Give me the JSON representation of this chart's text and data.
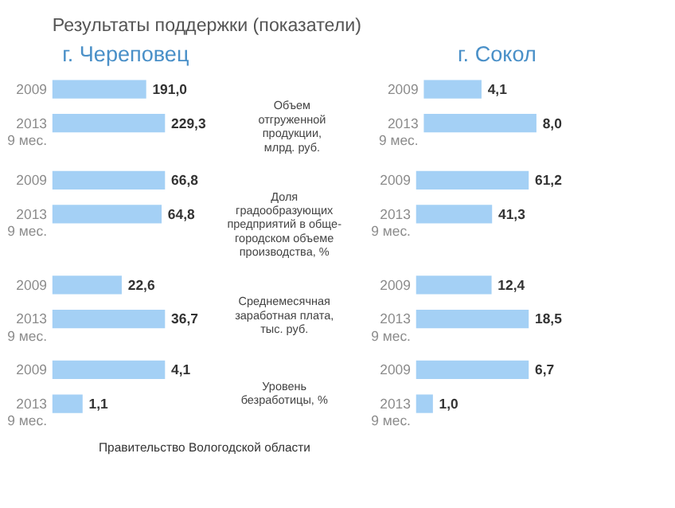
{
  "chart_data": [
    {
      "type": "other",
      "title": "Результаты поддержки (показатели)",
      "annotations": [
        "Правительство Вологодской области"
      ]
    },
    {
      "type": "bar",
      "orientation": "horizontal",
      "title": "г. Череповец",
      "categories": [
        "2009",
        "2013 9 мес."
      ],
      "values": [
        191.0,
        229.3
      ],
      "value_labels": [
        "191,0",
        "229,3"
      ],
      "color": "#a4d0f5",
      "tick_labels": "y"
    },
    {
      "type": "other",
      "title": "Объем\nотгруженной\nпродукции,\nмлрд. руб."
    },
    {
      "type": "bar",
      "orientation": "horizontal",
      "title": "г. Сокол",
      "categories": [
        "2009",
        "2013 9 мес."
      ],
      "values": [
        4.1,
        8.0
      ],
      "value_labels": [
        "4,1",
        "8,0"
      ],
      "color": "#a4d0f5",
      "tick_labels": "y"
    },
    {
      "type": "bar",
      "orientation": "horizontal",
      "categories": [
        "2009",
        "2013 9 мес."
      ],
      "values": [
        66.8,
        64.8
      ],
      "value_labels": [
        "66,8",
        "64,8"
      ],
      "color": "#a4d0f5",
      "tick_labels": "y"
    },
    {
      "type": "other",
      "title": "Доля\nградообразующих\nпредприятий в обще-\nгородском объеме\nпроизводства, %"
    },
    {
      "type": "bar",
      "orientation": "horizontal",
      "categories": [
        "2009",
        "2013 9 мес."
      ],
      "values": [
        61.2,
        41.3
      ],
      "value_labels": [
        "61,2",
        "41,3"
      ],
      "color": "#a4d0f5",
      "tick_labels": "y"
    },
    {
      "type": "bar",
      "orientation": "horizontal",
      "categories": [
        "2009",
        "2013 9 мес."
      ],
      "values": [
        22.6,
        36.7
      ],
      "value_labels": [
        "22,6",
        "36,7"
      ],
      "color": "#a4d0f5",
      "tick_labels": "y"
    },
    {
      "type": "other",
      "title": "Среднемесячная\nзаработная плата,\nтыс. руб."
    },
    {
      "type": "bar",
      "orientation": "horizontal",
      "categories": [
        "2009",
        "2013 9 мес."
      ],
      "values": [
        12.4,
        18.5
      ],
      "value_labels": [
        "12,4",
        "18,5"
      ],
      "color": "#a4d0f5",
      "tick_labels": "y"
    },
    {
      "type": "bar",
      "orientation": "horizontal",
      "categories": [
        "2009",
        "2013 9 мес."
      ],
      "values": [
        4.1,
        1.1
      ],
      "value_labels": [
        "4,1",
        "1,1"
      ],
      "color": "#a4d0f5",
      "tick_labels": "y"
    },
    {
      "type": "other",
      "title": "Уровень\nбезработицы, %"
    },
    {
      "type": "bar",
      "orientation": "horizontal",
      "categories": [
        "2009",
        "2013 9 мес."
      ],
      "values": [
        6.7,
        1.0
      ],
      "value_labels": [
        "6,7",
        "1,0"
      ],
      "color": "#a4d0f5",
      "tick_labels": "y"
    }
  ]
}
